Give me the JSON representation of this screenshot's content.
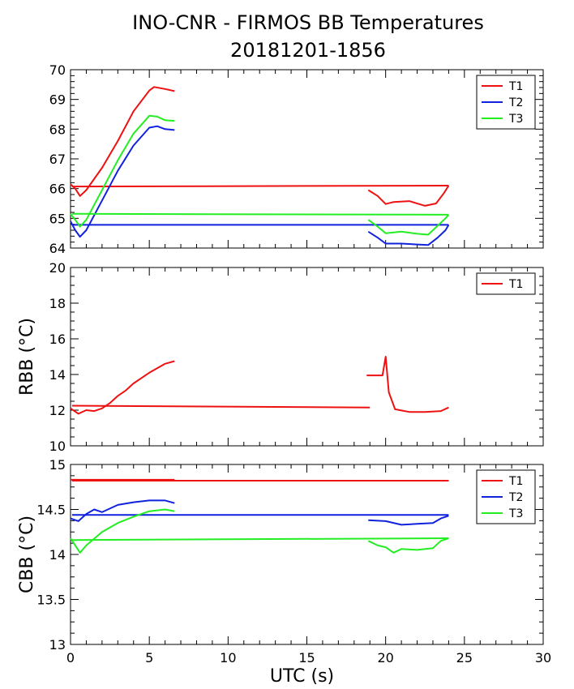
{
  "title_line1": "INO-CNR - FIRMOS BB Temperatures",
  "title_line2": "20181201-1856",
  "chart_data": [
    {
      "type": "line",
      "panel": "top",
      "ylabel": "",
      "xlim": [
        0,
        30
      ],
      "ylim": [
        64,
        70
      ],
      "yticks": [
        "64",
        "65",
        "66",
        "67",
        "68",
        "69",
        "70"
      ],
      "legend_position": "top-right",
      "series": [
        {
          "name": "T1",
          "color": "#ee1111",
          "segments": [
            [
              [
                0,
                66.15
              ],
              [
                0.3,
                66.0
              ],
              [
                0.6,
                65.75
              ],
              [
                1,
                65.95
              ],
              [
                2,
                66.7
              ],
              [
                3,
                67.6
              ],
              [
                4,
                68.6
              ],
              [
                5,
                69.3
              ],
              [
                5.3,
                69.42
              ],
              [
                6,
                69.35
              ],
              [
                6.6,
                69.28
              ]
            ],
            [
              [
                0.1,
                66.07
              ],
              [
                24,
                66.1
              ]
            ],
            [
              [
                18.9,
                65.95
              ],
              [
                19.5,
                65.75
              ],
              [
                20,
                65.48
              ],
              [
                20.5,
                65.55
              ],
              [
                21.5,
                65.58
              ],
              [
                22.5,
                65.42
              ],
              [
                23.2,
                65.5
              ],
              [
                23.7,
                65.85
              ],
              [
                24,
                66.1
              ]
            ]
          ]
        },
        {
          "name": "T2",
          "color": "#1122dd",
          "segments": [
            [
              [
                0,
                64.9
              ],
              [
                0.3,
                64.6
              ],
              [
                0.6,
                64.38
              ],
              [
                1,
                64.6
              ],
              [
                2,
                65.6
              ],
              [
                3,
                66.6
              ],
              [
                4,
                67.45
              ],
              [
                5,
                68.05
              ],
              [
                5.5,
                68.1
              ],
              [
                6,
                68.0
              ],
              [
                6.6,
                67.97
              ]
            ],
            [
              [
                0.1,
                64.78
              ],
              [
                24,
                64.78
              ]
            ],
            [
              [
                18.9,
                64.55
              ],
              [
                19.5,
                64.35
              ],
              [
                20,
                64.15
              ],
              [
                21,
                64.15
              ],
              [
                22,
                64.12
              ],
              [
                22.7,
                64.1
              ],
              [
                23.3,
                64.35
              ],
              [
                23.8,
                64.6
              ],
              [
                24,
                64.78
              ]
            ]
          ]
        },
        {
          "name": "T3",
          "color": "#22ee22",
          "segments": [
            [
              [
                0,
                65.15
              ],
              [
                0.3,
                64.95
              ],
              [
                0.6,
                64.72
              ],
              [
                1,
                64.95
              ],
              [
                2,
                65.95
              ],
              [
                3,
                66.95
              ],
              [
                4,
                67.85
              ],
              [
                5,
                68.45
              ],
              [
                5.5,
                68.42
              ],
              [
                6,
                68.3
              ],
              [
                6.6,
                68.28
              ]
            ],
            [
              [
                0.1,
                65.15
              ],
              [
                24,
                65.12
              ]
            ],
            [
              [
                18.9,
                64.95
              ],
              [
                19.5,
                64.72
              ],
              [
                20,
                64.5
              ],
              [
                21,
                64.55
              ],
              [
                22,
                64.48
              ],
              [
                22.7,
                64.45
              ],
              [
                23.3,
                64.75
              ],
              [
                23.8,
                65.0
              ],
              [
                24,
                65.12
              ]
            ]
          ]
        }
      ]
    },
    {
      "type": "line",
      "panel": "middle",
      "ylabel": "RBB (°C)",
      "xlim": [
        0,
        30
      ],
      "ylim": [
        10,
        20
      ],
      "yticks": [
        "10",
        "12",
        "14",
        "16",
        "18",
        "20"
      ],
      "legend_position": "top-right",
      "series": [
        {
          "name": "T1",
          "color": "#ee1111",
          "segments": [
            [
              [
                0,
                12.1
              ],
              [
                0.5,
                11.8
              ],
              [
                1,
                12.0
              ],
              [
                1.5,
                11.95
              ],
              [
                2,
                12.1
              ],
              [
                2.5,
                12.4
              ],
              [
                3,
                12.8
              ],
              [
                3.5,
                13.1
              ],
              [
                4,
                13.5
              ],
              [
                4.5,
                13.8
              ],
              [
                5,
                14.1
              ],
              [
                5.5,
                14.35
              ],
              [
                6,
                14.6
              ],
              [
                6.6,
                14.75
              ]
            ],
            [
              [
                0.1,
                12.25
              ],
              [
                19,
                12.15
              ]
            ],
            [
              [
                18.8,
                13.95
              ],
              [
                19.8,
                13.95
              ],
              [
                20,
                15.0
              ],
              [
                20.2,
                13.0
              ],
              [
                20.6,
                12.05
              ],
              [
                21.5,
                11.9
              ],
              [
                22.5,
                11.9
              ],
              [
                23.5,
                11.95
              ],
              [
                24,
                12.15
              ]
            ]
          ]
        }
      ]
    },
    {
      "type": "line",
      "panel": "bottom",
      "ylabel": "CBB (°C)",
      "xlabel": "UTC (s)",
      "xlim": [
        0,
        30
      ],
      "xticks": [
        "0",
        "5",
        "10",
        "15",
        "20",
        "25",
        "30"
      ],
      "ylim": [
        13,
        15
      ],
      "yticks": [
        "13",
        "13.5",
        "14",
        "14.5",
        "15"
      ],
      "legend_position": "top-right",
      "series": [
        {
          "name": "T1",
          "color": "#ee1111",
          "segments": [
            [
              [
                0,
                14.83
              ],
              [
                6.6,
                14.83
              ]
            ],
            [
              [
                0.1,
                14.82
              ],
              [
                24,
                14.82
              ]
            ],
            [
              [
                18.9,
                14.82
              ],
              [
                24,
                14.82
              ]
            ]
          ]
        },
        {
          "name": "T2",
          "color": "#1122dd",
          "segments": [
            [
              [
                0,
                14.4
              ],
              [
                0.5,
                14.37
              ],
              [
                1,
                14.45
              ],
              [
                1.5,
                14.5
              ],
              [
                2,
                14.47
              ],
              [
                3,
                14.55
              ],
              [
                4,
                14.58
              ],
              [
                5,
                14.6
              ],
              [
                6,
                14.6
              ],
              [
                6.6,
                14.57
              ]
            ],
            [
              [
                0.1,
                14.44
              ],
              [
                24,
                14.44
              ]
            ],
            [
              [
                18.9,
                14.38
              ],
              [
                20,
                14.37
              ],
              [
                21,
                14.33
              ],
              [
                22,
                14.34
              ],
              [
                23,
                14.35
              ],
              [
                23.5,
                14.4
              ],
              [
                24,
                14.43
              ]
            ]
          ]
        },
        {
          "name": "T3",
          "color": "#22ee22",
          "segments": [
            [
              [
                0,
                14.18
              ],
              [
                0.3,
                14.1
              ],
              [
                0.6,
                14.02
              ],
              [
                1,
                14.1
              ],
              [
                2,
                14.25
              ],
              [
                3,
                14.35
              ],
              [
                4,
                14.42
              ],
              [
                5,
                14.48
              ],
              [
                6,
                14.5
              ],
              [
                6.6,
                14.48
              ]
            ],
            [
              [
                0.1,
                14.16
              ],
              [
                24,
                14.18
              ]
            ],
            [
              [
                18.9,
                14.15
              ],
              [
                19.5,
                14.1
              ],
              [
                20,
                14.08
              ],
              [
                20.5,
                14.02
              ],
              [
                21,
                14.06
              ],
              [
                22,
                14.05
              ],
              [
                23,
                14.07
              ],
              [
                23.5,
                14.15
              ],
              [
                24,
                14.18
              ]
            ]
          ]
        }
      ]
    }
  ]
}
